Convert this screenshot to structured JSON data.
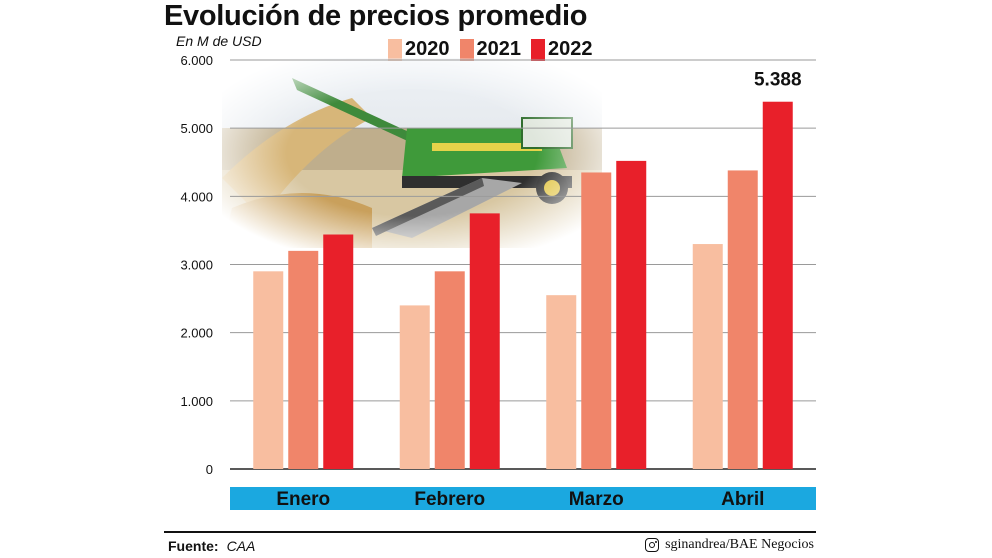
{
  "chart_data": {
    "type": "bar",
    "title": "Evolución de precios promedio",
    "ylabel": "En M de USD",
    "categories": [
      "Enero",
      "Febrero",
      "Marzo",
      "Abril"
    ],
    "series": [
      {
        "name": "2020",
        "color": "#f8bea0",
        "values": [
          2900,
          2400,
          2550,
          3300
        ]
      },
      {
        "name": "2021",
        "color": "#f0856a",
        "values": [
          3200,
          2900,
          4350,
          4380
        ]
      },
      {
        "name": "2022",
        "color": "#e8202a",
        "values": [
          3440,
          3750,
          4520,
          5388
        ]
      }
    ],
    "ylim": [
      0,
      6000
    ],
    "yticks": [
      0,
      1000,
      2000,
      3000,
      4000,
      5000,
      6000
    ],
    "ytick_labels": [
      "0",
      "1.000",
      "2.000",
      "3.000",
      "4.000",
      "5.000",
      "6.000"
    ],
    "annotations": [
      {
        "category": "Abril",
        "series": "2022",
        "text": "5.388"
      }
    ],
    "grid": true,
    "legend_position": "top",
    "category_band_color": "#1ba8e0",
    "background_image": "harvest-photo"
  },
  "footer": {
    "source_label": "Fuente:",
    "source_value": "CAA",
    "credit": "sginandrea/BAE Negocios",
    "credit_icon": "instagram-icon"
  }
}
